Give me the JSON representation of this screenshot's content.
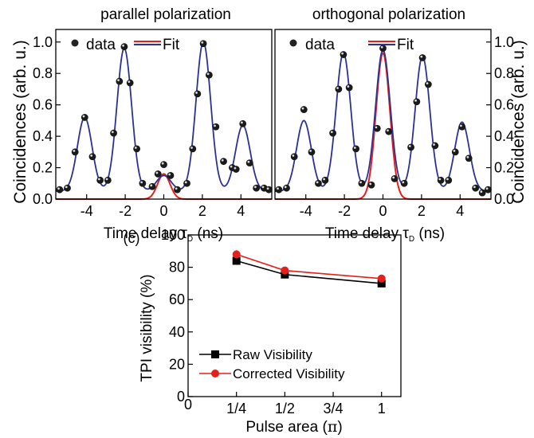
{
  "colors": {
    "data": "#000000",
    "fit": "#2e3192",
    "peak": "#e3201b",
    "corrected": "#e3201b",
    "raw": "#000000",
    "baseline": "#888888"
  },
  "chart_data": [
    {
      "type": "scatter",
      "title": "parallel polarization",
      "xlabel_main": "Time delay τ",
      "xlabel_sub": "D",
      "xlabel_unit": " (ns)",
      "ylabel": "Coincidences (arb. u.)",
      "xlim": [
        -5.6,
        5.6
      ],
      "ylim": [
        0,
        1.08
      ],
      "xticks": [
        -4,
        -2,
        0,
        2,
        4
      ],
      "yticks": [
        0.0,
        0.2,
        0.4,
        0.6,
        0.8,
        1.0
      ],
      "legend": {
        "position": "top-left",
        "data_label": "data",
        "fit_label": "Fit"
      },
      "fit_peaks": [
        {
          "center": -4.1,
          "amp": 0.47
        },
        {
          "center": -2.05,
          "amp": 0.91
        },
        {
          "center": 0.0,
          "amp": 0.1
        },
        {
          "center": 2.05,
          "amp": 0.95
        },
        {
          "center": 4.1,
          "amp": 0.42
        }
      ],
      "fit_offset": 0.05,
      "fit_width": 0.38,
      "center_peak": {
        "amp": 0.16,
        "width": 0.32
      },
      "points": [
        [
          -5.4,
          0.06
        ],
        [
          -5.0,
          0.07
        ],
        [
          -4.6,
          0.3
        ],
        [
          -4.1,
          0.52
        ],
        [
          -3.7,
          0.27
        ],
        [
          -3.3,
          0.12
        ],
        [
          -2.9,
          0.12
        ],
        [
          -2.6,
          0.42
        ],
        [
          -2.3,
          0.75
        ],
        [
          -2.05,
          0.97
        ],
        [
          -1.75,
          0.74
        ],
        [
          -1.4,
          0.32
        ],
        [
          -1.1,
          0.1
        ],
        [
          -0.6,
          0.08
        ],
        [
          -0.3,
          0.16
        ],
        [
          0.0,
          0.22
        ],
        [
          0.35,
          0.15
        ],
        [
          0.7,
          0.06
        ],
        [
          1.2,
          0.1
        ],
        [
          1.5,
          0.32
        ],
        [
          1.75,
          0.67
        ],
        [
          2.05,
          0.99
        ],
        [
          2.35,
          0.79
        ],
        [
          2.7,
          0.46
        ],
        [
          3.1,
          0.24
        ],
        [
          3.55,
          0.2
        ],
        [
          3.75,
          0.19
        ],
        [
          4.1,
          0.48
        ],
        [
          4.45,
          0.23
        ],
        [
          4.8,
          0.07
        ],
        [
          5.2,
          0.07
        ],
        [
          5.45,
          0.06
        ]
      ]
    },
    {
      "type": "scatter",
      "title": "orthogonal polarization",
      "xlabel_main": "Time delay τ",
      "xlabel_sub": "D",
      "xlabel_unit": " (ns)",
      "ylabel": "Coincidences (arb. u.)",
      "xlim": [
        -5.6,
        5.6
      ],
      "ylim": [
        0,
        1.08
      ],
      "xticks": [
        -4,
        -2,
        0,
        2,
        4
      ],
      "yticks": [
        0.0,
        0.2,
        0.4,
        0.6,
        0.8,
        1.0
      ],
      "legend": {
        "position": "top-left",
        "data_label": "data",
        "fit_label": "Fit"
      },
      "fit_peaks": [
        {
          "center": -4.1,
          "amp": 0.45
        },
        {
          "center": -2.05,
          "amp": 0.88
        },
        {
          "center": 0.0,
          "amp": 0.9
        },
        {
          "center": 2.05,
          "amp": 0.86
        },
        {
          "center": 4.1,
          "amp": 0.44
        }
      ],
      "fit_offset": 0.05,
      "fit_width": 0.38,
      "center_peak": {
        "amp": 0.93,
        "width": 0.36
      },
      "points": [
        [
          -5.4,
          0.06
        ],
        [
          -5.0,
          0.07
        ],
        [
          -4.6,
          0.27
        ],
        [
          -4.1,
          0.57
        ],
        [
          -3.7,
          0.3
        ],
        [
          -3.35,
          0.1
        ],
        [
          -3.0,
          0.12
        ],
        [
          -2.6,
          0.42
        ],
        [
          -2.3,
          0.7
        ],
        [
          -2.05,
          0.92
        ],
        [
          -1.75,
          0.71
        ],
        [
          -1.4,
          0.32
        ],
        [
          -1.1,
          0.1
        ],
        [
          -0.6,
          0.09
        ],
        [
          -0.3,
          0.45
        ],
        [
          0.0,
          0.96
        ],
        [
          0.3,
          0.43
        ],
        [
          0.6,
          0.13
        ],
        [
          1.1,
          0.1
        ],
        [
          1.45,
          0.33
        ],
        [
          1.75,
          0.62
        ],
        [
          2.05,
          0.9
        ],
        [
          2.35,
          0.73
        ],
        [
          2.7,
          0.34
        ],
        [
          3.0,
          0.12
        ],
        [
          3.4,
          0.12
        ],
        [
          3.75,
          0.3
        ],
        [
          4.1,
          0.46
        ],
        [
          4.45,
          0.26
        ],
        [
          4.8,
          0.07
        ],
        [
          5.15,
          0.04
        ],
        [
          5.45,
          0.06
        ]
      ]
    },
    {
      "type": "line",
      "label": "(c)",
      "xlabel_main": "Pulse area (",
      "xlabel_pi": "π",
      "xlabel_close": ")",
      "ylabel": "TPI visibility (%)",
      "xlim": [
        0,
        1.1
      ],
      "ylim": [
        0,
        100
      ],
      "xticks": [
        0,
        0.25,
        0.5,
        0.75,
        1
      ],
      "xticklabels": [
        "0",
        "1/4",
        "1/2",
        "3/4",
        "1"
      ],
      "yticks": [
        0,
        20,
        40,
        60,
        80,
        100
      ],
      "legend": {
        "position": "bottom-left"
      },
      "series": [
        {
          "name": "Raw Visibility",
          "x": [
            0.25,
            0.5,
            1
          ],
          "y": [
            84,
            75.5,
            70
          ],
          "err": [
            2.5,
            0,
            0
          ]
        },
        {
          "name": "Corrected Visibility",
          "x": [
            0.25,
            0.5,
            1
          ],
          "y": [
            88,
            78,
            73
          ],
          "err": [
            2.5,
            0,
            0
          ]
        }
      ]
    }
  ]
}
